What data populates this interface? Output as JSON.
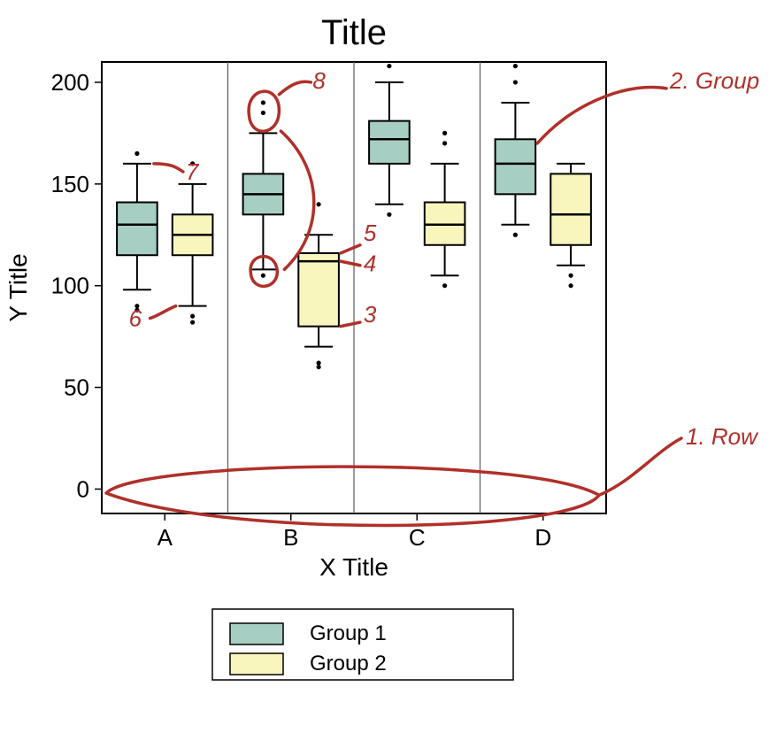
{
  "chart": {
    "type": "boxplot",
    "title": "Title",
    "xlabel": "X Title",
    "ylabel": "Y Title",
    "title_fontsize": 40,
    "axis_label_fontsize": 28,
    "tick_fontsize": 26,
    "background_color": "#ffffff",
    "panel_border_color": "#000000",
    "panel_divider_color": "#5a5a5a",
    "ylim": [
      -12,
      210
    ],
    "yticks": [
      0,
      50,
      100,
      150,
      200
    ],
    "categories": [
      "A",
      "B",
      "C",
      "D"
    ],
    "groups": [
      {
        "label": "Group 1",
        "fill": "#a7cec2",
        "stroke": "#000000"
      },
      {
        "label": "Group 2",
        "fill": "#f8f6bc",
        "stroke": "#000000"
      }
    ],
    "box_linewidth": 2,
    "whisker_linewidth": 2,
    "outlier_radius": 2.6,
    "data": {
      "A": [
        {
          "q1": 115,
          "med": 130,
          "q3": 141,
          "whisker_lo": 98,
          "whisker_hi": 160,
          "outliers": [
            90,
            165,
            88
          ]
        },
        {
          "q1": 115,
          "med": 125,
          "q3": 135,
          "whisker_lo": 90,
          "whisker_hi": 150,
          "outliers": [
            160,
            85,
            82
          ]
        }
      ],
      "B": [
        {
          "q1": 135,
          "med": 145,
          "q3": 155,
          "whisker_lo": 108,
          "whisker_hi": 175,
          "outliers": [
            185,
            190,
            105
          ]
        },
        {
          "q1": 80,
          "med": 112,
          "q3": 116,
          "whisker_lo": 70,
          "whisker_hi": 125,
          "outliers": [
            140,
            62,
            60
          ]
        }
      ],
      "C": [
        {
          "q1": 160,
          "med": 172,
          "q3": 181,
          "whisker_lo": 140,
          "whisker_hi": 200,
          "outliers": [
            208,
            135
          ]
        },
        {
          "q1": 120,
          "med": 130,
          "q3": 141,
          "whisker_lo": 105,
          "whisker_hi": 160,
          "outliers": [
            170,
            175,
            100
          ]
        }
      ],
      "D": [
        {
          "q1": 145,
          "med": 160,
          "q3": 172,
          "whisker_lo": 130,
          "whisker_hi": 190,
          "outliers": [
            200,
            208,
            125
          ]
        },
        {
          "q1": 120,
          "med": 135,
          "q3": 155,
          "whisker_lo": 110,
          "whisker_hi": 160,
          "outliers": [
            100,
            105
          ]
        }
      ]
    },
    "legend": {
      "border_color": "#000000",
      "swatch_size": 28,
      "fontsize": 24
    },
    "annotations": {
      "color": "#b0302a",
      "stroke_width": 3.5,
      "fontsize": 26,
      "items": [
        {
          "label": "1. Row",
          "type": "row-circle"
        },
        {
          "label": "2. Group",
          "type": "group-arrow"
        },
        {
          "label": "3",
          "target": "B-g2-q1"
        },
        {
          "label": "4",
          "target": "B-g2-med"
        },
        {
          "label": "5",
          "target": "B-g2-q3"
        },
        {
          "label": "6",
          "target": "A-g2-whisker-lo"
        },
        {
          "label": "7",
          "target": "A-g1-whisker-hi"
        },
        {
          "label": "8",
          "target": "B-g1-outliers"
        }
      ]
    }
  }
}
